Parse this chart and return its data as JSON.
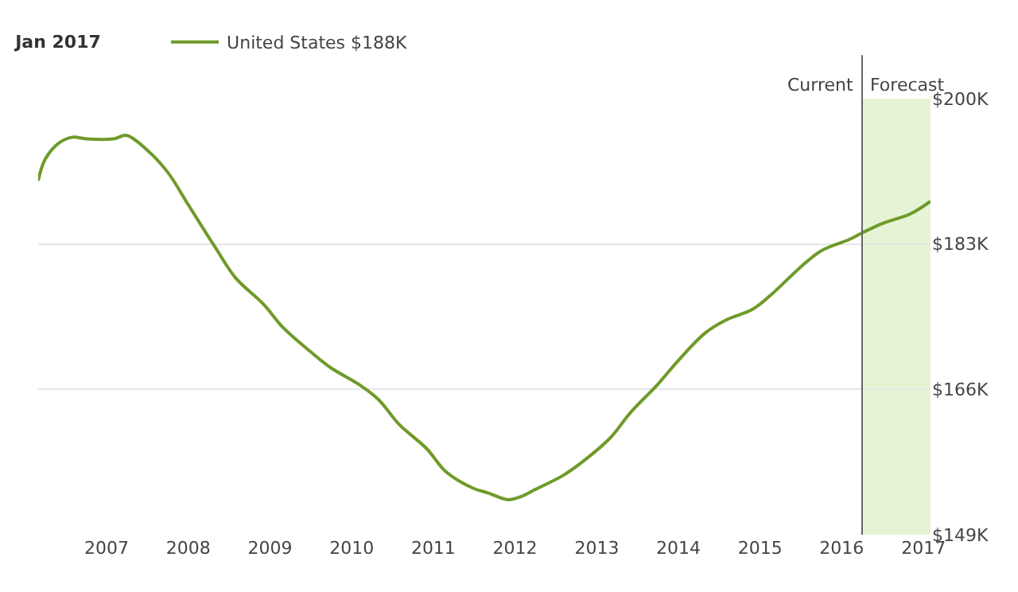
{
  "chart_data": {
    "type": "line",
    "title": "Jan 2017",
    "x": [
      "2006-03",
      "2006-04",
      "2006-06",
      "2006-08",
      "2006-10",
      "2007-02",
      "2007-04",
      "2007-07",
      "2007-10",
      "2008-01",
      "2008-05",
      "2008-08",
      "2008-12",
      "2009-03",
      "2009-07",
      "2009-10",
      "2010-02",
      "2010-05",
      "2010-08",
      "2010-12",
      "2011-03",
      "2011-07",
      "2011-09",
      "2011-12",
      "2012-02",
      "2012-04",
      "2012-08",
      "2012-11",
      "2013-03",
      "2013-06",
      "2013-10",
      "2014-01",
      "2014-05",
      "2014-08",
      "2014-12",
      "2015-03",
      "2015-07",
      "2015-10",
      "2016-02",
      "2016-04",
      "2016-07",
      "2016-11",
      "2017-02"
    ],
    "series": [
      {
        "name": "United States $188K",
        "color": "#6f9a2a",
        "values": [
          190.4,
          192.9,
          194.8,
          195.5,
          195.3,
          195.3,
          195.7,
          194.0,
          191.4,
          187.6,
          182.6,
          179.0,
          176.0,
          173.2,
          170.4,
          168.5,
          166.6,
          164.8,
          161.9,
          159.1,
          156.3,
          154.4,
          153.9,
          153.1,
          153.5,
          154.3,
          155.9,
          157.6,
          160.3,
          163.3,
          166.6,
          169.4,
          172.6,
          174.1,
          175.4,
          177.3,
          180.3,
          182.2,
          183.5,
          184.3,
          185.4,
          186.5,
          188.0
        ]
      }
    ],
    "xlim": [
      "2006-03",
      "2017-02"
    ],
    "xticks": [
      "2007",
      "2008",
      "2009",
      "2010",
      "2011",
      "2012",
      "2013",
      "2014",
      "2015",
      "2016",
      "2017"
    ],
    "ylim": [
      149,
      200
    ],
    "yticks": [
      {
        "value": 149,
        "label": "$149K"
      },
      {
        "value": 166,
        "label": "$166K"
      },
      {
        "value": 183,
        "label": "$183K"
      },
      {
        "value": 200,
        "label": "$200K"
      }
    ],
    "ref_lines": [
      {
        "axis": "x",
        "value": "2016-04",
        "label": "Current",
        "color": "#666666"
      }
    ],
    "bands": [
      {
        "axis": "x",
        "from": "2016-04",
        "to": "2017-02",
        "label": "Forecast",
        "color": "#e6f4d6"
      }
    ],
    "grid": "y",
    "legend": "top left",
    "marker": "none",
    "line_style": "solid"
  }
}
